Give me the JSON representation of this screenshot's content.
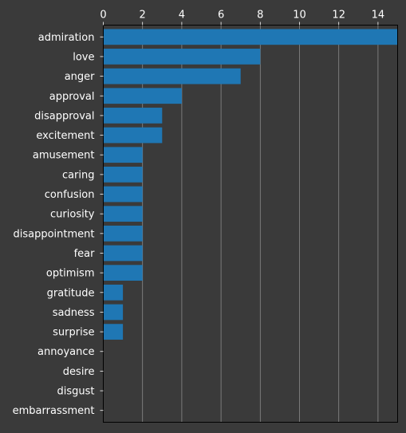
{
  "theme": {
    "background": "#3a3a3a",
    "bar_color": "#1f77b4",
    "grid_color": "#8a8a8a",
    "axis_color": "#000000",
    "text_color": "#ffffff"
  },
  "chart_data": {
    "type": "bar",
    "orientation": "horizontal",
    "categories": [
      "admiration",
      "love",
      "anger",
      "approval",
      "disapproval",
      "excitement",
      "amusement",
      "caring",
      "confusion",
      "curiosity",
      "disappointment",
      "fear",
      "optimism",
      "gratitude",
      "sadness",
      "surprise",
      "annoyance",
      "desire",
      "disgust",
      "embarrassment"
    ],
    "values": [
      15,
      8,
      7,
      4,
      3,
      3,
      2,
      2,
      2,
      2,
      2,
      2,
      2,
      1,
      1,
      1,
      0,
      0,
      0,
      0
    ],
    "title": "",
    "xlabel": "",
    "ylabel": "",
    "xlim": [
      0,
      15
    ],
    "xticks": [
      0,
      2,
      4,
      6,
      8,
      10,
      12,
      14
    ],
    "x_axis_position": "top",
    "grid": true,
    "legend": false
  }
}
